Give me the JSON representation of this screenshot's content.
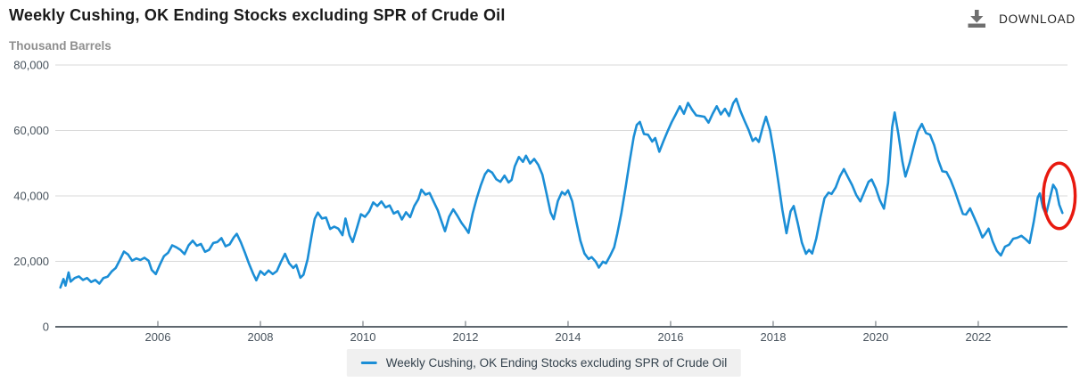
{
  "header": {
    "title": "Weekly Cushing, OK Ending Stocks excluding SPR of Crude Oil",
    "subtitle": "Thousand Barrels",
    "download_label": "DOWNLOAD"
  },
  "legend": {
    "label": "Weekly Cushing, OK Ending Stocks excluding SPR of Crude Oil"
  },
  "colors": {
    "series_blue": "#1b8ed6",
    "annotation_red": "#e8190f",
    "gridline": "#d8d8d8",
    "axis": "#5f676e",
    "download_icon": "#6f6f6f"
  },
  "chart_data": {
    "type": "line",
    "title": "Weekly Cushing, OK Ending Stocks excluding SPR of Crude Oil",
    "ylabel": "Thousand Barrels",
    "xlabel": "",
    "grid": "horizontal",
    "legend_position": "bottom-center",
    "xlim": [
      2004.0,
      2023.74
    ],
    "ylim": [
      0,
      80000
    ],
    "yticks": [
      0,
      20000,
      40000,
      60000,
      80000
    ],
    "xticks": [
      2006,
      2008,
      2010,
      2012,
      2014,
      2016,
      2018,
      2020,
      2022
    ],
    "annotation": {
      "shape": "ellipse",
      "color": "#e8190f",
      "cx_year": 2023.58,
      "cy_value": 40000,
      "rx_years": 0.31,
      "ry_value": 10000,
      "stroke_width": 3.5
    },
    "series": [
      {
        "name": "Weekly Cushing, OK Ending Stocks excluding SPR of Crude Oil",
        "color": "#1b8ed6",
        "points": [
          [
            2004.1,
            12000
          ],
          [
            2004.16,
            14600
          ],
          [
            2004.2,
            12600
          ],
          [
            2004.26,
            16600
          ],
          [
            2004.3,
            13800
          ],
          [
            2004.38,
            14900
          ],
          [
            2004.46,
            15400
          ],
          [
            2004.54,
            14300
          ],
          [
            2004.62,
            14900
          ],
          [
            2004.7,
            13700
          ],
          [
            2004.78,
            14300
          ],
          [
            2004.86,
            13200
          ],
          [
            2004.94,
            14900
          ],
          [
            2005.02,
            15300
          ],
          [
            2005.1,
            16900
          ],
          [
            2005.18,
            18000
          ],
          [
            2005.26,
            20400
          ],
          [
            2005.34,
            23000
          ],
          [
            2005.42,
            22100
          ],
          [
            2005.5,
            20200
          ],
          [
            2005.58,
            20900
          ],
          [
            2005.66,
            20400
          ],
          [
            2005.74,
            21100
          ],
          [
            2005.82,
            20200
          ],
          [
            2005.88,
            17400
          ],
          [
            2005.96,
            16100
          ],
          [
            2006.04,
            19000
          ],
          [
            2006.12,
            21600
          ],
          [
            2006.2,
            22600
          ],
          [
            2006.28,
            24900
          ],
          [
            2006.36,
            24300
          ],
          [
            2006.44,
            23500
          ],
          [
            2006.52,
            22200
          ],
          [
            2006.6,
            24900
          ],
          [
            2006.68,
            26300
          ],
          [
            2006.76,
            24800
          ],
          [
            2006.84,
            25300
          ],
          [
            2006.92,
            22900
          ],
          [
            2007.0,
            23500
          ],
          [
            2007.08,
            25600
          ],
          [
            2007.16,
            25900
          ],
          [
            2007.24,
            27100
          ],
          [
            2007.32,
            24600
          ],
          [
            2007.4,
            25200
          ],
          [
            2007.48,
            27300
          ],
          [
            2007.54,
            28400
          ],
          [
            2007.62,
            25800
          ],
          [
            2007.7,
            22600
          ],
          [
            2007.78,
            19200
          ],
          [
            2007.86,
            16200
          ],
          [
            2007.92,
            14200
          ],
          [
            2008.0,
            17000
          ],
          [
            2008.08,
            15900
          ],
          [
            2008.16,
            17200
          ],
          [
            2008.24,
            16100
          ],
          [
            2008.32,
            17000
          ],
          [
            2008.4,
            19800
          ],
          [
            2008.48,
            22300
          ],
          [
            2008.56,
            19400
          ],
          [
            2008.64,
            18000
          ],
          [
            2008.7,
            18900
          ],
          [
            2008.78,
            15000
          ],
          [
            2008.84,
            15900
          ],
          [
            2008.92,
            20600
          ],
          [
            2009.0,
            28000
          ],
          [
            2009.06,
            33000
          ],
          [
            2009.12,
            34900
          ],
          [
            2009.2,
            33100
          ],
          [
            2009.28,
            33400
          ],
          [
            2009.36,
            29900
          ],
          [
            2009.44,
            30600
          ],
          [
            2009.52,
            30000
          ],
          [
            2009.6,
            28000
          ],
          [
            2009.66,
            33100
          ],
          [
            2009.74,
            27900
          ],
          [
            2009.8,
            25900
          ],
          [
            2009.88,
            30100
          ],
          [
            2009.96,
            34400
          ],
          [
            2010.04,
            33600
          ],
          [
            2010.12,
            35200
          ],
          [
            2010.2,
            38000
          ],
          [
            2010.28,
            36900
          ],
          [
            2010.36,
            38300
          ],
          [
            2010.44,
            36500
          ],
          [
            2010.52,
            37100
          ],
          [
            2010.6,
            34600
          ],
          [
            2010.68,
            35300
          ],
          [
            2010.76,
            32800
          ],
          [
            2010.84,
            35000
          ],
          [
            2010.92,
            33500
          ],
          [
            2011.0,
            36900
          ],
          [
            2011.08,
            39000
          ],
          [
            2011.14,
            41900
          ],
          [
            2011.22,
            40400
          ],
          [
            2011.3,
            40900
          ],
          [
            2011.38,
            38200
          ],
          [
            2011.46,
            35600
          ],
          [
            2011.54,
            31900
          ],
          [
            2011.6,
            29200
          ],
          [
            2011.68,
            33600
          ],
          [
            2011.76,
            35900
          ],
          [
            2011.84,
            34000
          ],
          [
            2011.92,
            31800
          ],
          [
            2012.0,
            30100
          ],
          [
            2012.06,
            28700
          ],
          [
            2012.14,
            34600
          ],
          [
            2012.22,
            39300
          ],
          [
            2012.3,
            43300
          ],
          [
            2012.38,
            46600
          ],
          [
            2012.44,
            47900
          ],
          [
            2012.52,
            47100
          ],
          [
            2012.6,
            45100
          ],
          [
            2012.68,
            44300
          ],
          [
            2012.76,
            46200
          ],
          [
            2012.84,
            44100
          ],
          [
            2012.9,
            44900
          ],
          [
            2012.96,
            49000
          ],
          [
            2013.04,
            51900
          ],
          [
            2013.12,
            50400
          ],
          [
            2013.18,
            52300
          ],
          [
            2013.26,
            49900
          ],
          [
            2013.34,
            51300
          ],
          [
            2013.42,
            49500
          ],
          [
            2013.5,
            46500
          ],
          [
            2013.58,
            40800
          ],
          [
            2013.66,
            34900
          ],
          [
            2013.72,
            32900
          ],
          [
            2013.8,
            38400
          ],
          [
            2013.88,
            41200
          ],
          [
            2013.94,
            40400
          ],
          [
            2014.0,
            41700
          ],
          [
            2014.08,
            38400
          ],
          [
            2014.16,
            32200
          ],
          [
            2014.24,
            26300
          ],
          [
            2014.32,
            22400
          ],
          [
            2014.4,
            20700
          ],
          [
            2014.46,
            21300
          ],
          [
            2014.54,
            19900
          ],
          [
            2014.6,
            18100
          ],
          [
            2014.68,
            19900
          ],
          [
            2014.74,
            19400
          ],
          [
            2014.82,
            21700
          ],
          [
            2014.9,
            24300
          ],
          [
            2014.96,
            28500
          ],
          [
            2015.04,
            34800
          ],
          [
            2015.12,
            42400
          ],
          [
            2015.2,
            50500
          ],
          [
            2015.28,
            58000
          ],
          [
            2015.34,
            61700
          ],
          [
            2015.4,
            62600
          ],
          [
            2015.48,
            58900
          ],
          [
            2015.56,
            58700
          ],
          [
            2015.64,
            56600
          ],
          [
            2015.7,
            57700
          ],
          [
            2015.78,
            53500
          ],
          [
            2015.86,
            56700
          ],
          [
            2015.94,
            59700
          ],
          [
            2016.02,
            62500
          ],
          [
            2016.1,
            64900
          ],
          [
            2016.18,
            67400
          ],
          [
            2016.26,
            65100
          ],
          [
            2016.34,
            68400
          ],
          [
            2016.42,
            66300
          ],
          [
            2016.5,
            64600
          ],
          [
            2016.58,
            64400
          ],
          [
            2016.66,
            64200
          ],
          [
            2016.74,
            62400
          ],
          [
            2016.82,
            65100
          ],
          [
            2016.9,
            67400
          ],
          [
            2016.98,
            64900
          ],
          [
            2017.06,
            66600
          ],
          [
            2017.14,
            64400
          ],
          [
            2017.22,
            68300
          ],
          [
            2017.28,
            69700
          ],
          [
            2017.36,
            66000
          ],
          [
            2017.44,
            63000
          ],
          [
            2017.52,
            60200
          ],
          [
            2017.6,
            56800
          ],
          [
            2017.66,
            57700
          ],
          [
            2017.72,
            56500
          ],
          [
            2017.8,
            61200
          ],
          [
            2017.86,
            64200
          ],
          [
            2017.94,
            60000
          ],
          [
            2018.02,
            52800
          ],
          [
            2018.1,
            44400
          ],
          [
            2018.18,
            35700
          ],
          [
            2018.26,
            28600
          ],
          [
            2018.34,
            35300
          ],
          [
            2018.4,
            36900
          ],
          [
            2018.48,
            31600
          ],
          [
            2018.56,
            25700
          ],
          [
            2018.64,
            22300
          ],
          [
            2018.7,
            23500
          ],
          [
            2018.76,
            22400
          ],
          [
            2018.84,
            27000
          ],
          [
            2018.92,
            33400
          ],
          [
            2019.0,
            39300
          ],
          [
            2019.08,
            41000
          ],
          [
            2019.14,
            40600
          ],
          [
            2019.22,
            42600
          ],
          [
            2019.3,
            45900
          ],
          [
            2019.38,
            48200
          ],
          [
            2019.46,
            45700
          ],
          [
            2019.54,
            43300
          ],
          [
            2019.62,
            40300
          ],
          [
            2019.7,
            38300
          ],
          [
            2019.78,
            41300
          ],
          [
            2019.86,
            44300
          ],
          [
            2019.92,
            45000
          ],
          [
            2020.0,
            42300
          ],
          [
            2020.08,
            38700
          ],
          [
            2020.16,
            36100
          ],
          [
            2020.24,
            44000
          ],
          [
            2020.32,
            61000
          ],
          [
            2020.37,
            65500
          ],
          [
            2020.44,
            59000
          ],
          [
            2020.52,
            50500
          ],
          [
            2020.58,
            45900
          ],
          [
            2020.66,
            50000
          ],
          [
            2020.74,
            55000
          ],
          [
            2020.82,
            59700
          ],
          [
            2020.9,
            62000
          ],
          [
            2020.98,
            59200
          ],
          [
            2021.06,
            58700
          ],
          [
            2021.14,
            55500
          ],
          [
            2021.22,
            50900
          ],
          [
            2021.3,
            47500
          ],
          [
            2021.38,
            47300
          ],
          [
            2021.46,
            44900
          ],
          [
            2021.54,
            41700
          ],
          [
            2021.62,
            38000
          ],
          [
            2021.7,
            34500
          ],
          [
            2021.76,
            34300
          ],
          [
            2021.84,
            36200
          ],
          [
            2021.92,
            33400
          ],
          [
            2022.0,
            30500
          ],
          [
            2022.08,
            27300
          ],
          [
            2022.14,
            28500
          ],
          [
            2022.2,
            30000
          ],
          [
            2022.28,
            26100
          ],
          [
            2022.36,
            23200
          ],
          [
            2022.44,
            21800
          ],
          [
            2022.52,
            24500
          ],
          [
            2022.6,
            25100
          ],
          [
            2022.68,
            26900
          ],
          [
            2022.76,
            27200
          ],
          [
            2022.84,
            27800
          ],
          [
            2022.92,
            26800
          ],
          [
            2023.0,
            25600
          ],
          [
            2023.08,
            32000
          ],
          [
            2023.16,
            39600
          ],
          [
            2023.2,
            40800
          ],
          [
            2023.26,
            36500
          ],
          [
            2023.32,
            34300
          ],
          [
            2023.4,
            39500
          ],
          [
            2023.46,
            43400
          ],
          [
            2023.52,
            41900
          ],
          [
            2023.58,
            37300
          ],
          [
            2023.64,
            34800
          ]
        ]
      }
    ]
  }
}
